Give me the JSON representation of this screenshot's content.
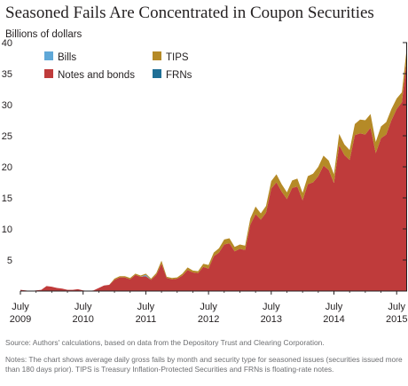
{
  "header": {
    "title": "Seasoned Fails Are Concentrated in Coupon Securities",
    "unit": "Billions of dollars"
  },
  "notes": {
    "source": "Source: Authors' calculations, based on data from the Depository Trust and Clearing Corporation.",
    "text": "Notes: The chart shows average daily gross fails by month and security type for seasoned issues (securities issued more than 180 days prior). TIPS is Treasury Inflation-Protected Securities and FRNs is floating-rate notes."
  },
  "chart_data": {
    "type": "area",
    "stacked": true,
    "title": "Seasoned Fails Are Concentrated in Coupon Securities",
    "ylabel": "Billions of dollars",
    "ylim": [
      0,
      40
    ],
    "yticks": [
      5,
      10,
      15,
      20,
      25,
      30,
      35,
      40
    ],
    "xticks": [
      {
        "month": 0,
        "line1": "July",
        "line2": "2009"
      },
      {
        "month": 12,
        "line1": "July",
        "line2": "2010"
      },
      {
        "month": 24,
        "line1": "July",
        "line2": "2011"
      },
      {
        "month": 36,
        "line1": "July",
        "line2": "2012"
      },
      {
        "month": 48,
        "line1": "July",
        "line2": "2013"
      },
      {
        "month": 60,
        "line1": "July",
        "line2": "2014"
      },
      {
        "month": 72,
        "line1": "July",
        "line2": "2015"
      }
    ],
    "x_start": "July 2009",
    "x_end": "September 2015",
    "grid": false,
    "legend": "top",
    "series": [
      {
        "name": "Bills",
        "color": "#5fa8d8",
        "values": [
          0,
          0,
          0,
          0,
          0,
          0,
          0,
          0,
          0,
          0,
          0,
          0,
          0,
          0,
          0,
          0,
          0,
          0,
          0,
          0,
          0,
          0,
          0,
          0,
          0.2,
          0,
          0,
          0,
          0,
          0,
          0,
          0,
          0,
          0,
          0,
          0,
          0,
          0,
          0,
          0,
          0,
          0,
          0,
          0,
          0,
          0,
          0,
          0,
          0,
          0,
          0,
          0,
          0,
          0,
          0,
          0,
          0,
          0,
          0,
          0,
          0,
          0,
          0,
          0,
          0,
          0,
          0,
          0,
          0,
          0,
          0,
          0,
          0,
          0,
          0
        ]
      },
      {
        "name": "Notes and bonds",
        "color": "#bf3b3b",
        "values": [
          0.2,
          0.1,
          0,
          0.1,
          0.2,
          0.8,
          0.7,
          0.5,
          0.4,
          0.2,
          0.2,
          0.3,
          0.1,
          0,
          0.1,
          0.5,
          0.9,
          1,
          1.8,
          2.2,
          2.2,
          1.9,
          2.6,
          2.3,
          2.4,
          1.8,
          2.6,
          4.4,
          2.1,
          1.9,
          2,
          2.5,
          3.4,
          3,
          2.9,
          3.9,
          3.6,
          5.6,
          6.2,
          7.5,
          7.7,
          6.4,
          6.8,
          6.6,
          10.7,
          12.4,
          11.5,
          12.6,
          16.5,
          17.5,
          16,
          14.8,
          16.6,
          16.8,
          14.6,
          17.2,
          17.5,
          18.5,
          20.2,
          19.5,
          17.4,
          23.5,
          21.9,
          21.1,
          25.1,
          25.4,
          25.2,
          26.3,
          22.2,
          24.6,
          25.2,
          27.5,
          29.3,
          30.4,
          37.8
        ]
      },
      {
        "name": "TIPS",
        "color": "#b58a27",
        "values": [
          0,
          0,
          0,
          0,
          0,
          0,
          0,
          0,
          0,
          0,
          0,
          0,
          0,
          0,
          0,
          0,
          0,
          0,
          0.2,
          0.2,
          0.2,
          0.2,
          0.2,
          0.2,
          0.2,
          0.2,
          0.3,
          0.5,
          0.2,
          0.2,
          0.2,
          0.3,
          0.4,
          0.3,
          0.3,
          0.5,
          0.6,
          0.6,
          0.7,
          0.8,
          0.8,
          0.7,
          0.7,
          0.7,
          1,
          1.2,
          1,
          1.1,
          1.2,
          1.3,
          1.2,
          1.1,
          1.2,
          1.3,
          1.2,
          1.3,
          1.4,
          1.5,
          1.6,
          1.5,
          1.4,
          1.8,
          1.7,
          1.6,
          1.8,
          2.2,
          2.3,
          2.2,
          1.8,
          1.9,
          2,
          1.8,
          1.7,
          1.6,
          1.9
        ]
      },
      {
        "name": "FRNs",
        "color": "#1f6f96",
        "values": [
          0,
          0,
          0,
          0,
          0,
          0,
          0,
          0,
          0,
          0,
          0,
          0,
          0,
          0,
          0,
          0,
          0,
          0,
          0,
          0,
          0,
          0,
          0,
          0,
          0,
          0,
          0,
          0,
          0,
          0,
          0,
          0,
          0,
          0,
          0,
          0,
          0,
          0,
          0,
          0,
          0,
          0,
          0,
          0,
          0,
          0,
          0,
          0,
          0,
          0,
          0,
          0,
          0,
          0,
          0,
          0,
          0,
          0,
          0,
          0,
          0,
          0,
          0,
          0,
          0,
          0,
          0,
          0,
          0,
          0,
          0,
          0,
          0,
          0,
          0
        ]
      }
    ]
  }
}
